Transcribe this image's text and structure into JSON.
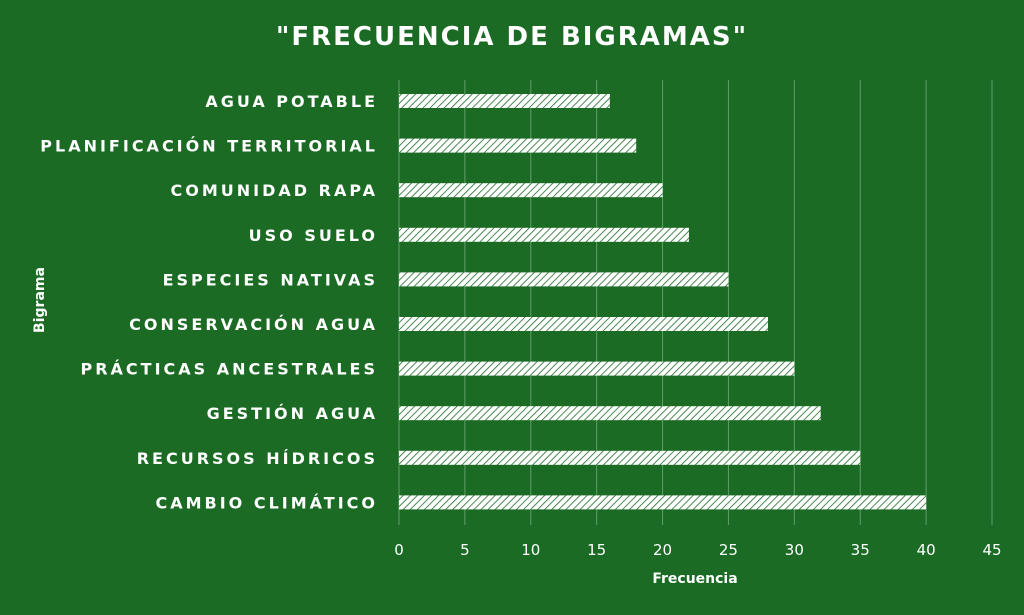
{
  "chart_data": {
    "type": "bar",
    "orientation": "horizontal",
    "title": "\"FRECUENCIA DE BIGRAMAS\"",
    "xlabel": "Frecuencia",
    "ylabel": "Bigrama",
    "categories": [
      "AGUA POTABLE",
      "PLANIFICACIÓN TERRITORIAL",
      "COMUNIDAD RAPA",
      "USO SUELO",
      "ESPECIES NATIVAS",
      "CONSERVACIÓN AGUA",
      "PRÁCTICAS ANCESTRALES",
      "GESTIÓN AGUA",
      "RECURSOS HÍDRICOS",
      "CAMBIO CLIMÁTICO"
    ],
    "values": [
      16,
      18,
      20,
      22,
      25,
      28,
      30,
      32,
      35,
      40
    ],
    "xlim": [
      0,
      45
    ],
    "xticks": [
      "0",
      "5",
      "10",
      "15",
      "20",
      "25",
      "30",
      "35",
      "40",
      "45"
    ],
    "grid": "vertical",
    "legend": "none",
    "bar_fill": "diagonal-hatch",
    "colors": {
      "background": "#1b6b25",
      "bar": "#ffffff",
      "text": "#ffffff",
      "grid": "#5f9f66"
    }
  }
}
